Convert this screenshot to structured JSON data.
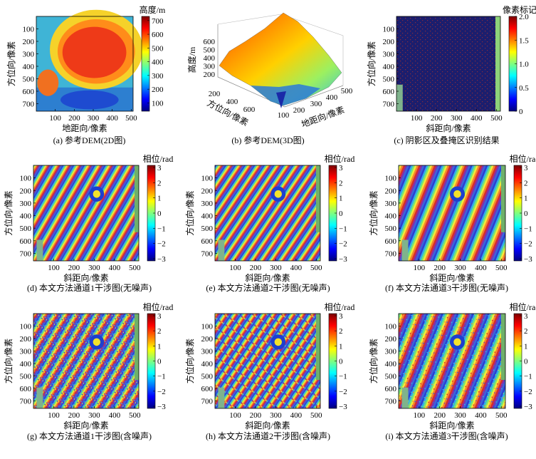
{
  "colors": {
    "jet": [
      "#00007f",
      "#0000ff",
      "#007fff",
      "#00ffff",
      "#7fff7f",
      "#ffff00",
      "#ff7f00",
      "#ff0000",
      "#7f0000"
    ],
    "mask_bg": "#1b1e6e",
    "mask_dots": "#8a2d3a",
    "mask_strip": "#8ed37a"
  },
  "chart_data": [
    {
      "id": "a",
      "type": "heatmap",
      "caption": "(a) 参考DEM(2D图)",
      "xlabel": "地距向/像素",
      "ylabel": "方位向/像素",
      "xticks": [
        100,
        200,
        300,
        400,
        500
      ],
      "yticks": [
        100,
        200,
        300,
        400,
        500,
        600,
        700
      ],
      "xlim": [
        0,
        510
      ],
      "ylim": [
        0,
        760
      ],
      "colorbar": {
        "title": "高度/m",
        "ticks": [
          100,
          200,
          300,
          400,
          500,
          600,
          700
        ],
        "range": [
          40,
          730
        ]
      }
    },
    {
      "id": "b",
      "type": "surface3d",
      "caption": "(b) 参考DEM(3D图)",
      "zlabel": "高度/m",
      "ylabel": "方位向/像素",
      "xlabel": "地距向/像素",
      "zticks": [
        200,
        300,
        400,
        500,
        600
      ],
      "yticks": [
        200,
        400,
        600
      ],
      "xticks": [
        100,
        200,
        300,
        400,
        500
      ]
    },
    {
      "id": "c",
      "type": "heatmap",
      "caption": "(c) 阴影区及叠掩区识别结果",
      "xlabel": "斜距向/像素",
      "ylabel": "方位向/像素",
      "xticks": [
        100,
        200,
        300,
        400,
        500
      ],
      "yticks": [
        100,
        200,
        300,
        400,
        500,
        600,
        700
      ],
      "xlim": [
        0,
        520
      ],
      "ylim": [
        0,
        760
      ],
      "colorbar": {
        "title": "像素标记",
        "ticks": [
          "0",
          "0.5",
          "1.0",
          "1.5",
          "2.0"
        ],
        "range": [
          0,
          2
        ]
      }
    },
    {
      "id": "d",
      "type": "heatmap",
      "caption": "(d) 本文方法通道1干涉图(无噪声)",
      "xlabel": "斜距向/像素",
      "ylabel": "方位向/像素",
      "xticks": [
        100,
        200,
        300,
        400,
        500
      ],
      "yticks": [
        100,
        200,
        300,
        400,
        500,
        600,
        700
      ],
      "xlim": [
        0,
        520
      ],
      "ylim": [
        0,
        760
      ],
      "colorbar": {
        "title": "相位/rad",
        "ticks": [
          3,
          2,
          1,
          0,
          -1,
          -2,
          -3
        ],
        "range": [
          -3.14,
          3.14
        ]
      }
    },
    {
      "id": "e",
      "type": "heatmap",
      "caption": "(e) 本文方法通道2干涉图(无噪声)",
      "xlabel": "斜距向/像素",
      "ylabel": "方位向/像素",
      "xticks": [
        100,
        200,
        300,
        400,
        500
      ],
      "yticks": [
        100,
        200,
        300,
        400,
        500,
        600,
        700
      ],
      "xlim": [
        0,
        520
      ],
      "ylim": [
        0,
        760
      ],
      "colorbar": {
        "title": "相位/rad",
        "ticks": [
          3,
          2,
          1,
          0,
          -1,
          -2,
          -3
        ],
        "range": [
          -3.14,
          3.14
        ]
      }
    },
    {
      "id": "f",
      "type": "heatmap",
      "caption": "(f) 本文方法通道3干涉图(无噪声)",
      "xlabel": "斜距向/像素",
      "ylabel": "方位向/像素",
      "xticks": [
        100,
        200,
        300,
        400,
        500
      ],
      "yticks": [
        100,
        200,
        300,
        400,
        500,
        600,
        700
      ],
      "xlim": [
        0,
        520
      ],
      "ylim": [
        0,
        760
      ],
      "colorbar": {
        "title": "相位/rad",
        "ticks": [
          3,
          2,
          1,
          0,
          -1,
          -2,
          -3
        ],
        "range": [
          -3.14,
          3.14
        ]
      }
    },
    {
      "id": "g",
      "type": "heatmap",
      "caption": "(g) 本文方法通道1干涉图(含噪声)",
      "xlabel": "斜距向/像素",
      "ylabel": "方位向/像素",
      "xticks": [
        100,
        200,
        300,
        400,
        500
      ],
      "yticks": [
        100,
        200,
        300,
        400,
        500,
        600,
        700
      ],
      "xlim": [
        0,
        520
      ],
      "ylim": [
        0,
        760
      ],
      "colorbar": {
        "title": "相位/rad",
        "ticks": [
          3,
          2,
          1,
          0,
          -1,
          -2,
          -3
        ],
        "range": [
          -3.14,
          3.14
        ]
      }
    },
    {
      "id": "h",
      "type": "heatmap",
      "caption": "(h) 本文方法通道2干涉图(含噪声)",
      "xlabel": "斜距向/像素",
      "ylabel": "方位向/像素",
      "xticks": [
        100,
        200,
        300,
        400,
        500
      ],
      "yticks": [
        100,
        200,
        300,
        400,
        500,
        600,
        700
      ],
      "xlim": [
        0,
        520
      ],
      "ylim": [
        0,
        760
      ],
      "colorbar": {
        "title": "相位/rad",
        "ticks": [
          3,
          2,
          1,
          0,
          -1,
          -2,
          -3
        ],
        "range": [
          -3.14,
          3.14
        ]
      }
    },
    {
      "id": "i",
      "type": "heatmap",
      "caption": "(i) 本文方法通道3干涉图(含噪声)",
      "xlabel": "斜距向/像素",
      "ylabel": "方位向/像素",
      "xticks": [
        100,
        200,
        300,
        400,
        500
      ],
      "yticks": [
        100,
        200,
        300,
        400,
        500,
        600,
        700
      ],
      "xlim": [
        0,
        520
      ],
      "ylim": [
        0,
        760
      ],
      "colorbar": {
        "title": "相位/rad",
        "ticks": [
          3,
          2,
          1,
          0,
          -1,
          -2,
          -3
        ],
        "range": [
          -3.14,
          3.14
        ]
      }
    }
  ]
}
